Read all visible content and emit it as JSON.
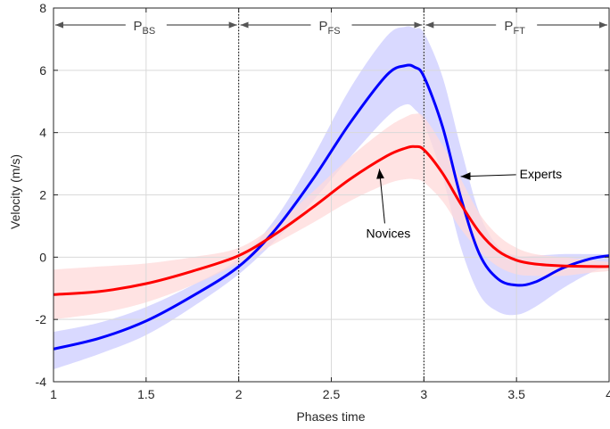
{
  "chart_data": {
    "type": "line",
    "title": "",
    "xlabel": "Phases time",
    "ylabel": "Velocity (m/s)",
    "xlim": [
      1,
      4
    ],
    "ylim": [
      -4,
      8
    ],
    "xticks": [
      1,
      1.5,
      2,
      2.5,
      3,
      3.5,
      4
    ],
    "xtick_labels": [
      "1",
      "1.5",
      "2",
      "2.5",
      "3",
      "3.5",
      "4"
    ],
    "yticks": [
      -4,
      -2,
      0,
      2,
      4,
      6,
      8
    ],
    "ytick_labels": [
      "-4",
      "-2",
      "0",
      "2",
      "4",
      "6",
      "8"
    ],
    "grid": true,
    "phase_boundaries": [
      2,
      3
    ],
    "phases": [
      {
        "label": "P",
        "sub": "BS",
        "from": 1,
        "to": 2
      },
      {
        "label": "P",
        "sub": "FS",
        "from": 2,
        "to": 3
      },
      {
        "label": "P",
        "sub": "FT",
        "from": 3,
        "to": 4
      }
    ],
    "series": [
      {
        "name": "Experts",
        "color": "#0000ff",
        "band_color": "#ccccff",
        "x": [
          1.0,
          1.25,
          1.5,
          1.75,
          2.0,
          2.2,
          2.4,
          2.6,
          2.8,
          2.9,
          2.95,
          3.0,
          3.1,
          3.2,
          3.3,
          3.4,
          3.5,
          3.6,
          3.75,
          3.9,
          4.0
        ],
        "y": [
          -2.95,
          -2.6,
          -2.05,
          -1.25,
          -0.3,
          0.9,
          2.5,
          4.3,
          5.85,
          6.15,
          6.1,
          5.8,
          4.2,
          1.9,
          0.1,
          -0.7,
          -0.9,
          -0.8,
          -0.35,
          -0.05,
          0.05
        ],
        "lower": [
          -3.6,
          -3.1,
          -2.5,
          -1.6,
          -0.55,
          0.55,
          1.8,
          3.2,
          4.5,
          4.9,
          4.75,
          4.3,
          2.6,
          0.3,
          -1.2,
          -1.75,
          -1.85,
          -1.6,
          -1.0,
          -0.5,
          -0.3
        ],
        "upper": [
          -2.4,
          -2.1,
          -1.6,
          -0.9,
          -0.05,
          1.25,
          3.2,
          5.4,
          7.1,
          7.4,
          7.35,
          7.2,
          5.8,
          3.5,
          1.4,
          0.35,
          0.05,
          0.05,
          0.1,
          0.1,
          0.1
        ]
      },
      {
        "name": "Novices",
        "color": "#ff0000",
        "band_color": "#ffd9d9",
        "x": [
          1.0,
          1.25,
          1.5,
          1.75,
          2.0,
          2.2,
          2.4,
          2.6,
          2.8,
          2.9,
          2.95,
          3.0,
          3.1,
          3.2,
          3.3,
          3.4,
          3.5,
          3.6,
          3.75,
          3.9,
          4.0
        ],
        "y": [
          -1.2,
          -1.1,
          -0.85,
          -0.45,
          0.05,
          0.75,
          1.6,
          2.5,
          3.25,
          3.5,
          3.55,
          3.45,
          2.7,
          1.7,
          0.8,
          0.2,
          -0.1,
          -0.22,
          -0.28,
          -0.3,
          -0.3
        ],
        "lower": [
          -2.0,
          -1.8,
          -1.45,
          -0.9,
          -0.2,
          0.45,
          1.1,
          1.8,
          2.35,
          2.5,
          2.5,
          2.4,
          1.8,
          0.9,
          0.2,
          -0.3,
          -0.55,
          -0.6,
          -0.6,
          -0.5,
          -0.45
        ],
        "upper": [
          -0.4,
          -0.3,
          -0.2,
          0.0,
          0.3,
          1.05,
          2.1,
          3.2,
          4.15,
          4.5,
          4.6,
          4.5,
          3.6,
          2.5,
          1.4,
          0.7,
          0.3,
          0.1,
          0.0,
          -0.1,
          -0.15
        ]
      }
    ],
    "annotations": [
      {
        "text": "Experts",
        "target_series": "Experts",
        "target_x": 3.17
      },
      {
        "text": "Novices",
        "target_series": "Novices",
        "target_x": 2.75
      }
    ]
  }
}
